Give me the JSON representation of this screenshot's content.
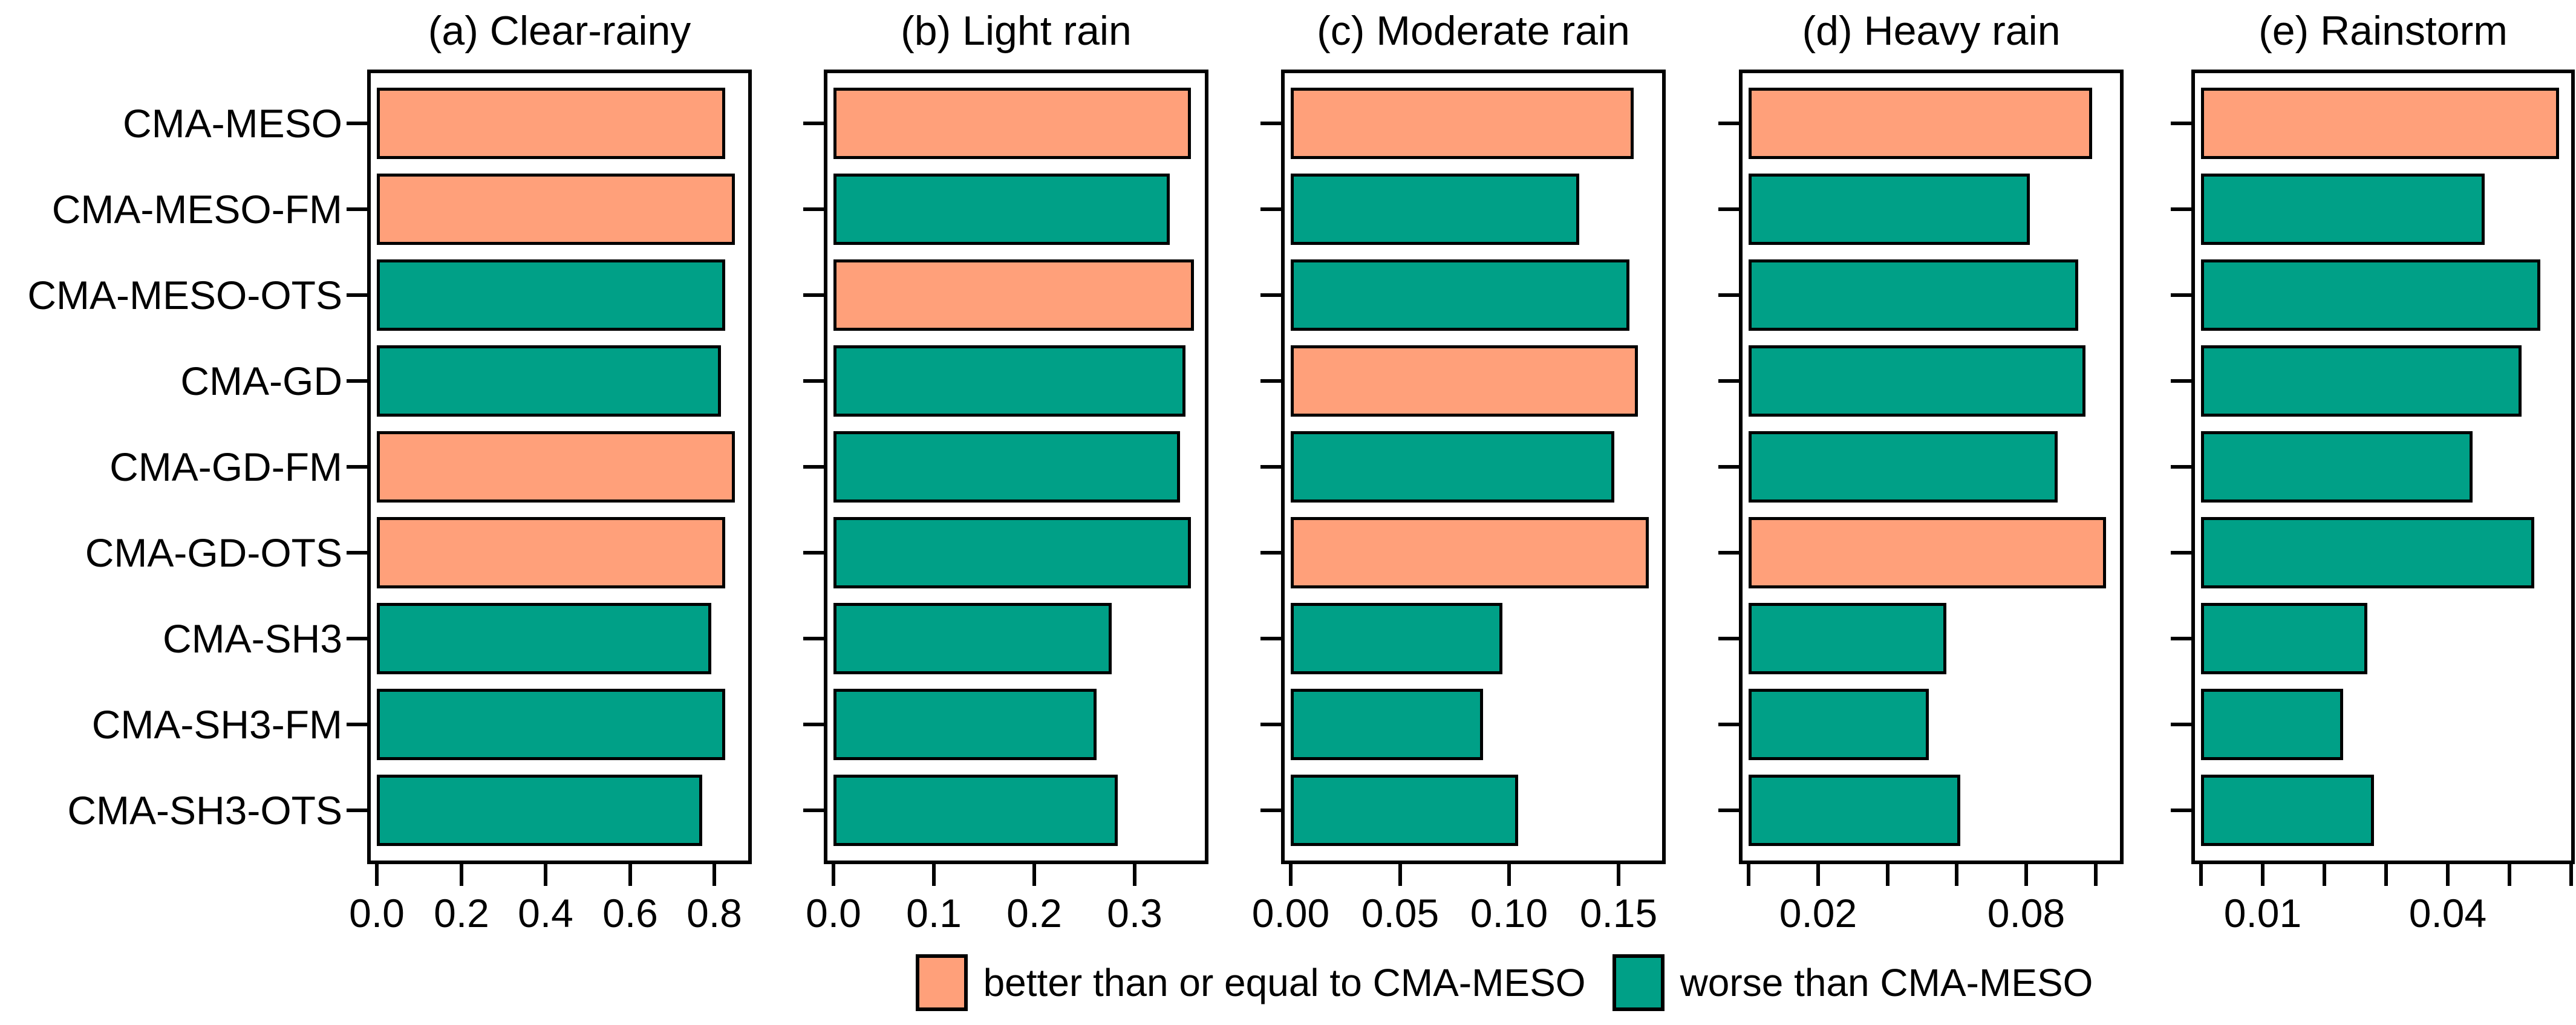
{
  "figure_background": "#FFFFFF",
  "chart_data": {
    "type": "bar",
    "orientation": "horizontal",
    "grid": false,
    "legend_position": "bottom-center",
    "categories": [
      "CMA-MESO",
      "CMA-MESO-FM",
      "CMA-MESO-OTS",
      "CMA-GD",
      "CMA-GD-FM",
      "CMA-GD-OTS",
      "CMA-SH3",
      "CMA-SH3-FM",
      "CMA-SH3-OTS"
    ],
    "status_colors": {
      "better": "#FFA07A",
      "worse": "#00A087"
    },
    "bar_outline_color": "#000000",
    "panels": [
      {
        "id": "a",
        "title": "(a) Clear-rainy",
        "xlim": [
          0,
          0.88
        ],
        "ticks": [
          {
            "value": 0.0,
            "label": "0.0"
          },
          {
            "value": 0.2,
            "label": "0.2"
          },
          {
            "value": 0.4,
            "label": "0.4"
          },
          {
            "value": 0.6,
            "label": "0.6"
          },
          {
            "value": 0.8,
            "label": "0.8"
          }
        ],
        "values": [
          0.826,
          0.849,
          0.826,
          0.816,
          0.849,
          0.826,
          0.792,
          0.825,
          0.771
        ],
        "status": [
          "better",
          "better",
          "worse",
          "worse",
          "better",
          "better",
          "worse",
          "worse",
          "worse"
        ]
      },
      {
        "id": "b",
        "title": "(b) Light rain",
        "xlim": [
          0,
          0.37
        ],
        "ticks": [
          {
            "value": 0.0,
            "label": "0.0"
          },
          {
            "value": 0.1,
            "label": "0.1"
          },
          {
            "value": 0.2,
            "label": "0.2"
          },
          {
            "value": 0.3,
            "label": "0.3"
          }
        ],
        "values": [
          0.356,
          0.335,
          0.359,
          0.351,
          0.345,
          0.356,
          0.277,
          0.262,
          0.283
        ],
        "status": [
          "better",
          "worse",
          "better",
          "worse",
          "worse",
          "worse",
          "worse",
          "worse",
          "worse"
        ]
      },
      {
        "id": "c",
        "title": "(c) Moderate rain",
        "xlim": [
          0,
          0.17
        ],
        "ticks": [
          {
            "value": 0.0,
            "label": "0.00"
          },
          {
            "value": 0.05,
            "label": "0.05"
          },
          {
            "value": 0.1,
            "label": "0.10"
          },
          {
            "value": 0.15,
            "label": "0.15"
          }
        ],
        "values": [
          0.157,
          0.132,
          0.155,
          0.159,
          0.148,
          0.164,
          0.097,
          0.088,
          0.104
        ],
        "status": [
          "better",
          "worse",
          "worse",
          "better",
          "worse",
          "better",
          "worse",
          "worse",
          "worse"
        ]
      },
      {
        "id": "d",
        "title": "(d) Heavy rain",
        "xlim": [
          0,
          0.107
        ],
        "ticks": [
          {
            "value": 0.0,
            "label": ""
          },
          {
            "value": 0.02,
            "label": "0.02"
          },
          {
            "value": 0.04,
            "label": ""
          },
          {
            "value": 0.06,
            "label": ""
          },
          {
            "value": 0.08,
            "label": "0.08"
          },
          {
            "value": 0.1,
            "label": ""
          }
        ],
        "values": [
          0.099,
          0.081,
          0.095,
          0.097,
          0.089,
          0.103,
          0.057,
          0.052,
          0.061
        ],
        "status": [
          "better",
          "worse",
          "worse",
          "worse",
          "worse",
          "better",
          "worse",
          "worse",
          "worse"
        ]
      },
      {
        "id": "e",
        "title": "(e) Rainstorm",
        "xlim": [
          0,
          0.06
        ],
        "ticks": [
          {
            "value": 0.0,
            "label": ""
          },
          {
            "value": 0.01,
            "label": "0.01"
          },
          {
            "value": 0.02,
            "label": ""
          },
          {
            "value": 0.03,
            "label": ""
          },
          {
            "value": 0.04,
            "label": "0.04"
          },
          {
            "value": 0.05,
            "label": ""
          },
          {
            "value": 0.06,
            "label": ""
          }
        ],
        "values": [
          0.058,
          0.046,
          0.055,
          0.052,
          0.044,
          0.054,
          0.027,
          0.023,
          0.028
        ],
        "status": [
          "better",
          "worse",
          "worse",
          "worse",
          "worse",
          "worse",
          "worse",
          "worse",
          "worse"
        ]
      }
    ],
    "legend": [
      {
        "status": "better",
        "label": "better than or equal to CMA-MESO"
      },
      {
        "status": "worse",
        "label": "worse than CMA-MESO"
      }
    ]
  }
}
